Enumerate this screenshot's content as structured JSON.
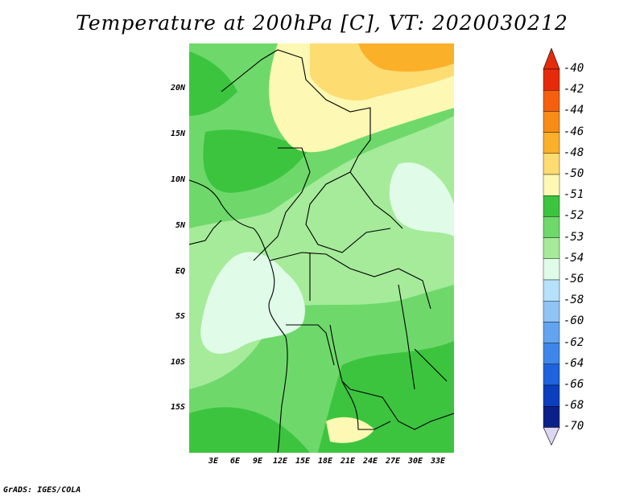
{
  "title": "Temperature at 200hPa [C], VT: 2020030212",
  "credit": "GrADS: IGES/COLA",
  "lat_labels": [
    "20N",
    "15N",
    "10N",
    "5N",
    "EQ",
    "5S",
    "10S",
    "15S"
  ],
  "lon_labels": [
    "3E",
    "6E",
    "9E",
    "12E",
    "15E",
    "18E",
    "21E",
    "24E",
    "27E",
    "30E",
    "33E"
  ],
  "colorbar": {
    "labels": [
      "-40",
      "-42",
      "-44",
      "-46",
      "-48",
      "-50",
      "-51",
      "-52",
      "-53",
      "-54",
      "-56",
      "-58",
      "-60",
      "-62",
      "-64",
      "-66",
      "-68",
      "-70"
    ],
    "colors": [
      "#e52b0b",
      "#f55f0e",
      "#f88c18",
      "#fbb02a",
      "#fddc72",
      "#fdf8b4",
      "#3cc43f",
      "#6ed96a",
      "#a5eb9a",
      "#e0fbe8",
      "#b7e1fa",
      "#8fc4f5",
      "#62a4f0",
      "#3e86ea",
      "#1f62dd",
      "#0b3fbe",
      "#0b208a"
    ]
  }
}
